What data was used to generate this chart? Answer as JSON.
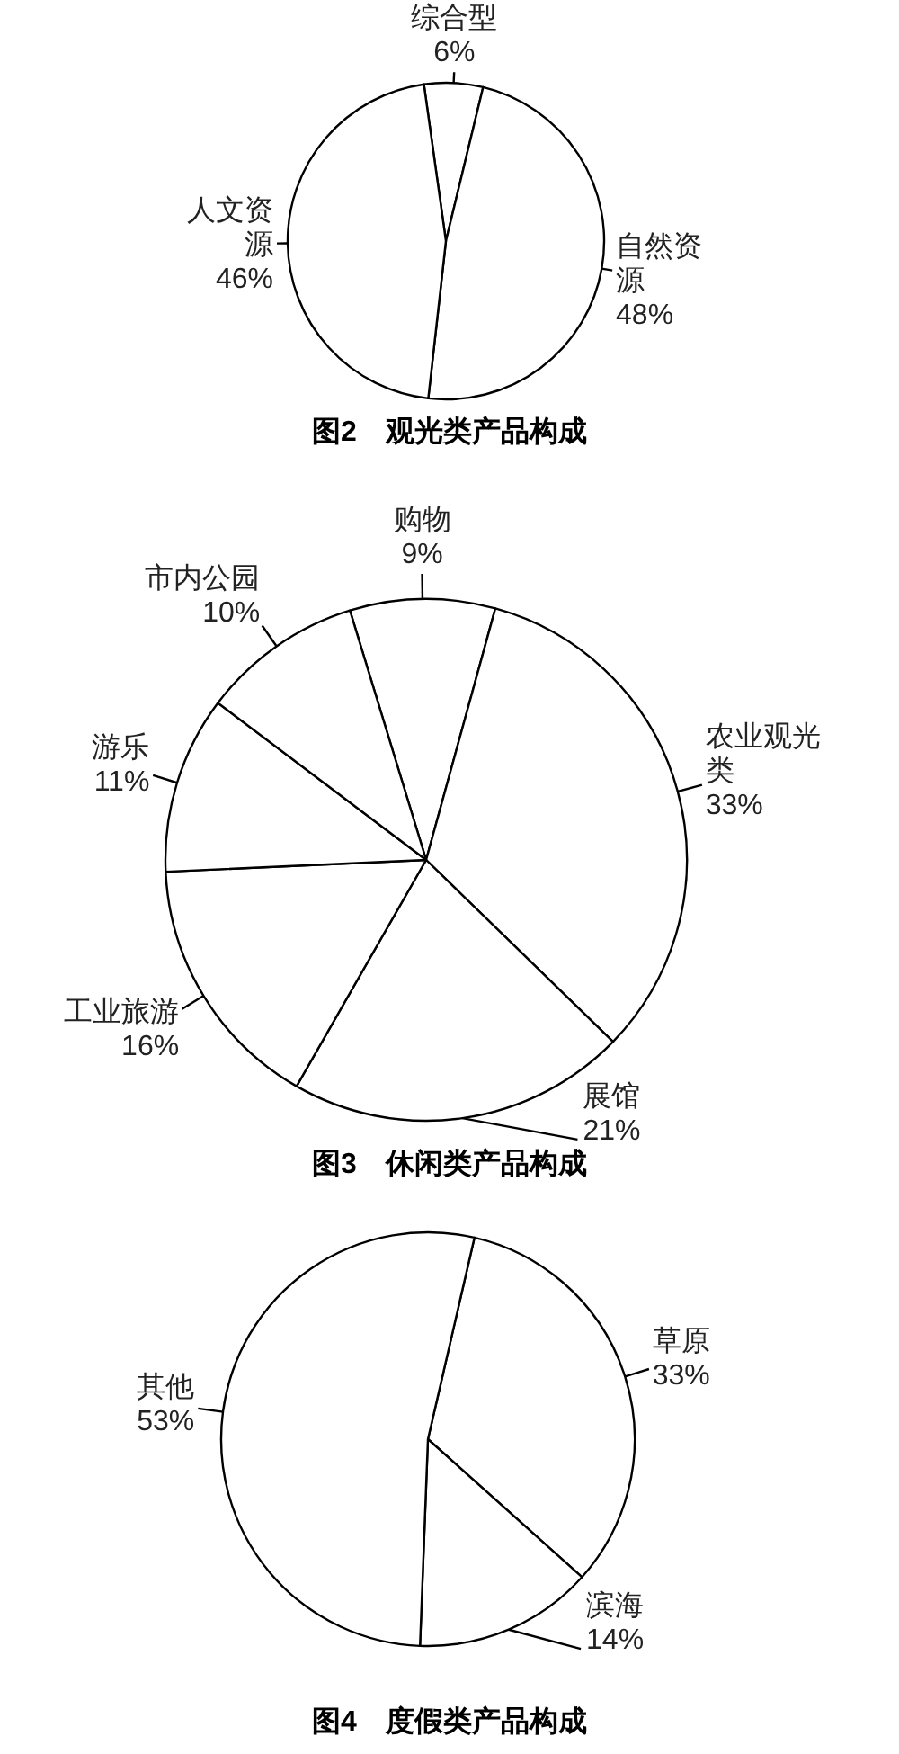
{
  "chart_data": [
    {
      "type": "pie",
      "title": "图2　观光类产品构成",
      "categories": [
        "综合型",
        "自然资源",
        "人文资源"
      ],
      "values": [
        6,
        48,
        46
      ],
      "value_labels": [
        "6%",
        "48%",
        "46%"
      ],
      "colors": [
        "#ffffff",
        "#ffffff",
        "#ffffff"
      ]
    },
    {
      "type": "pie",
      "title": "图3　休闲类产品构成",
      "categories": [
        "购物",
        "农业观光类",
        "展馆",
        "工业旅游",
        "游乐",
        "市内公园"
      ],
      "values": [
        9,
        33,
        21,
        16,
        11,
        10
      ],
      "value_labels": [
        "9%",
        "33%",
        "21%",
        "16%",
        "11%",
        "10%"
      ],
      "colors": [
        "#ffffff",
        "#ffffff",
        "#ffffff",
        "#ffffff",
        "#ffffff",
        "#ffffff"
      ]
    },
    {
      "type": "pie",
      "title": "图4　度假类产品构成",
      "categories": [
        "草原",
        "滨海",
        "其他"
      ],
      "values": [
        33,
        14,
        53
      ],
      "value_labels": [
        "33%",
        "14%",
        "53%"
      ],
      "colors": [
        "#ffffff",
        "#ffffff",
        "#ffffff"
      ]
    }
  ]
}
